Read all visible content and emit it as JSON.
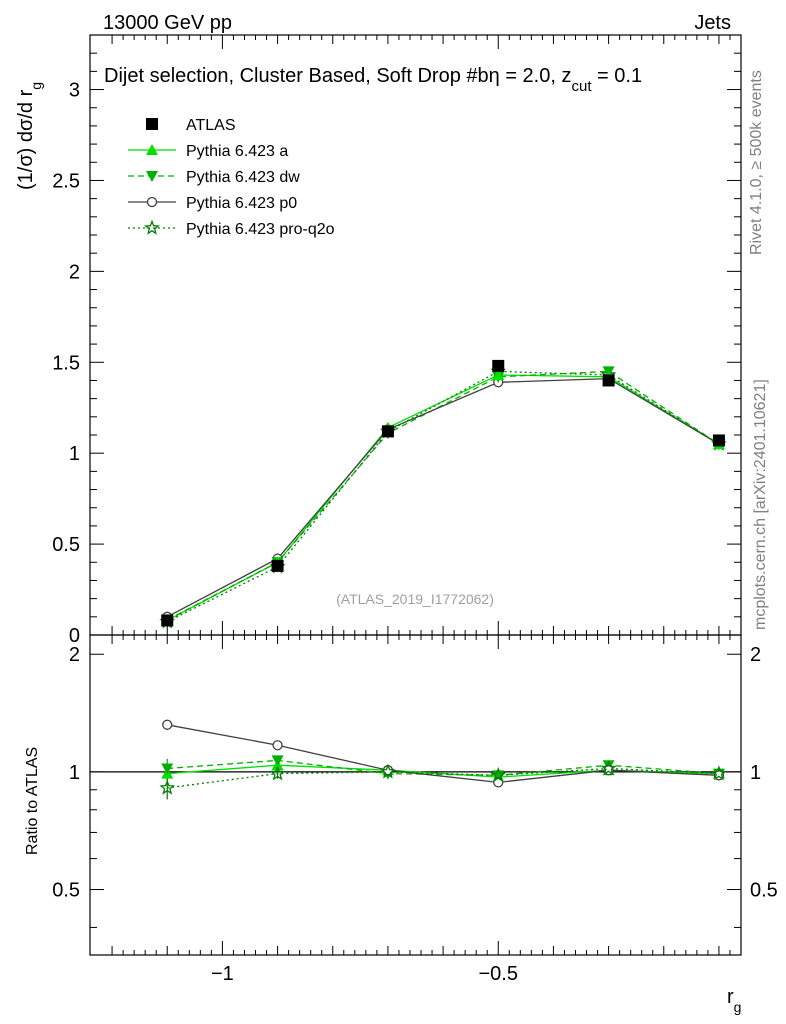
{
  "header": {
    "left": "13000 GeV pp",
    "right": "Jets"
  },
  "side": {
    "rivet": "Rivet 4.1.0, ≥ 500k events",
    "mcplots": "mcplots.cern.ch [arXiv:2401.10621]"
  },
  "chart_data": [
    {
      "type": "line",
      "title": "Dijet selection, Cluster Based, Soft Drop #b",
      "title_suffix_eta": "η = 2.0, z",
      "title_suffix_sub": "cut",
      "title_suffix_end": " = 0.1",
      "watermark": "(ATLAS_2019_I1772062)",
      "ylabel": "(1/σ) dσ/d r",
      "ylabel_sub": "g",
      "xlim": [
        -1.24,
        -0.06
      ],
      "ylim": [
        0,
        3.3
      ],
      "yticks": [
        0,
        0.5,
        1,
        1.5,
        2,
        2.5,
        3
      ],
      "ytick_labels": [
        "0",
        "0.5",
        "1",
        "1.5",
        "2",
        "2.5",
        "3"
      ],
      "x": [
        -1.1,
        -0.9,
        -0.7,
        -0.5,
        -0.3,
        -0.1
      ],
      "legend_position": "top-left",
      "series": [
        {
          "name": "ATLAS",
          "values": [
            0.08,
            0.38,
            1.12,
            1.48,
            1.4,
            1.07
          ],
          "color": "#000000",
          "marker": "square",
          "line": "none"
        },
        {
          "name": "Pythia 6.423 a",
          "values": [
            0.08,
            0.4,
            1.14,
            1.43,
            1.42,
            1.05
          ],
          "color": "#00e000",
          "marker": "triangle-up",
          "line": "solid"
        },
        {
          "name": "Pythia 6.423 dw",
          "values": [
            0.083,
            0.4,
            1.11,
            1.42,
            1.45,
            1.05
          ],
          "color": "#00b000",
          "marker": "triangle-down",
          "line": "dashed"
        },
        {
          "name": "Pythia 6.423 p0",
          "values": [
            0.1,
            0.42,
            1.13,
            1.39,
            1.41,
            1.05
          ],
          "color": "#404040",
          "marker": "circle-open",
          "line": "solid"
        },
        {
          "name": "Pythia 6.423 pro-q2o",
          "values": [
            0.073,
            0.375,
            1.12,
            1.45,
            1.43,
            1.05
          ],
          "color": "#008000",
          "marker": "star-open",
          "line": "dotted"
        }
      ]
    },
    {
      "type": "line",
      "title": "",
      "xlabel": "r",
      "xlabel_sub": "g",
      "ylabel": "Ratio to ATLAS",
      "xlim": [
        -1.24,
        -0.06
      ],
      "ylim": [
        0.34,
        2.24
      ],
      "xticks": [
        -1,
        -0.5
      ],
      "xtick_labels": [
        "−1",
        "−0.5"
      ],
      "yticks": [
        0.5,
        1,
        2
      ],
      "ytick_labels": [
        "0.5",
        "1",
        "2"
      ],
      "x": [
        -1.1,
        -0.9,
        -0.7,
        -0.5,
        -0.3,
        -0.1
      ],
      "series": [
        {
          "name": "Pythia 6.423 a",
          "values": [
            0.99,
            1.04,
            1.01,
            0.97,
            1.01,
            0.99
          ],
          "errors": [
            0.06,
            0.03,
            0.01,
            0.01,
            0.01,
            0.01
          ],
          "color": "#00e000",
          "marker": "triangle-up",
          "line": "solid"
        },
        {
          "name": "Pythia 6.423 dw",
          "values": [
            1.02,
            1.07,
            0.99,
            0.98,
            1.04,
            0.99
          ],
          "errors": [
            0.06,
            0.03,
            0.01,
            0.01,
            0.01,
            0.01
          ],
          "color": "#00b000",
          "marker": "triangle-down",
          "line": "dashed"
        },
        {
          "name": "Pythia 6.423 p0",
          "values": [
            1.32,
            1.17,
            1.01,
            0.94,
            1.01,
            0.98
          ],
          "errors": [
            0.04,
            0.02,
            0.01,
            0.01,
            0.01,
            0.01
          ],
          "color": "#404040",
          "marker": "circle-open",
          "line": "solid"
        },
        {
          "name": "Pythia 6.423 pro-q2o",
          "values": [
            0.91,
            0.99,
            1.0,
            0.98,
            1.02,
            0.99
          ],
          "errors": [
            0.06,
            0.03,
            0.01,
            0.01,
            0.01,
            0.01
          ],
          "color": "#008000",
          "marker": "star-open",
          "line": "dotted"
        }
      ]
    }
  ]
}
